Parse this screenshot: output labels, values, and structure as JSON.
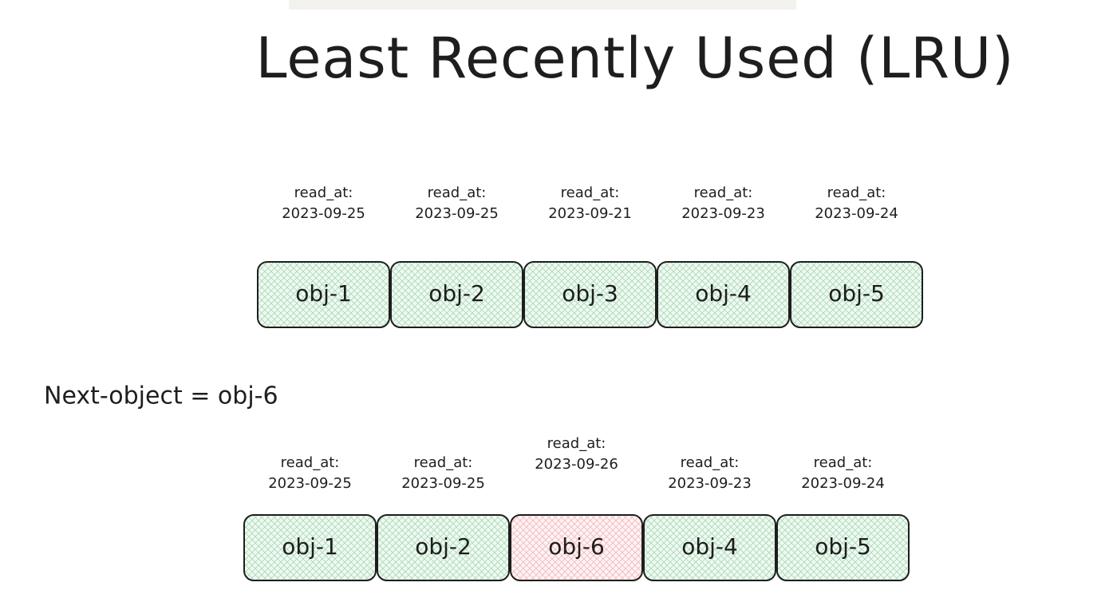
{
  "title": "Least Recently Used (LRU)",
  "before": [
    {
      "label": "read_at:",
      "date": "2023-09-25",
      "name": "obj-1",
      "color": "#8fd19e"
    },
    {
      "label": "read_at:",
      "date": "2023-09-25",
      "name": "obj-2",
      "color": "#8fd19e"
    },
    {
      "label": "read_at:",
      "date": "2023-09-21",
      "name": "obj-3",
      "color": "#8fd19e"
    },
    {
      "label": "read_at:",
      "date": "2023-09-23",
      "name": "obj-4",
      "color": "#8fd19e"
    },
    {
      "label": "read_at:",
      "date": "2023-09-24",
      "name": "obj-5",
      "color": "#8fd19e"
    }
  ],
  "next": "Next-object = obj-6",
  "after": [
    {
      "label": "read_at:",
      "date": "2023-09-25",
      "name": "obj-1",
      "color": "#8fd19e"
    },
    {
      "label": "read_at:",
      "date": "2023-09-25",
      "name": "obj-2",
      "color": "#8fd19e"
    },
    {
      "label": "read_at:",
      "date": "2023-09-26",
      "name": "obj-6",
      "color": "#f4a3a8"
    },
    {
      "label": "read_at:",
      "date": "2023-09-23",
      "name": "obj-4",
      "color": "#8fd19e"
    },
    {
      "label": "read_at:",
      "date": "2023-09-24",
      "name": "obj-5",
      "color": "#8fd19e"
    }
  ]
}
